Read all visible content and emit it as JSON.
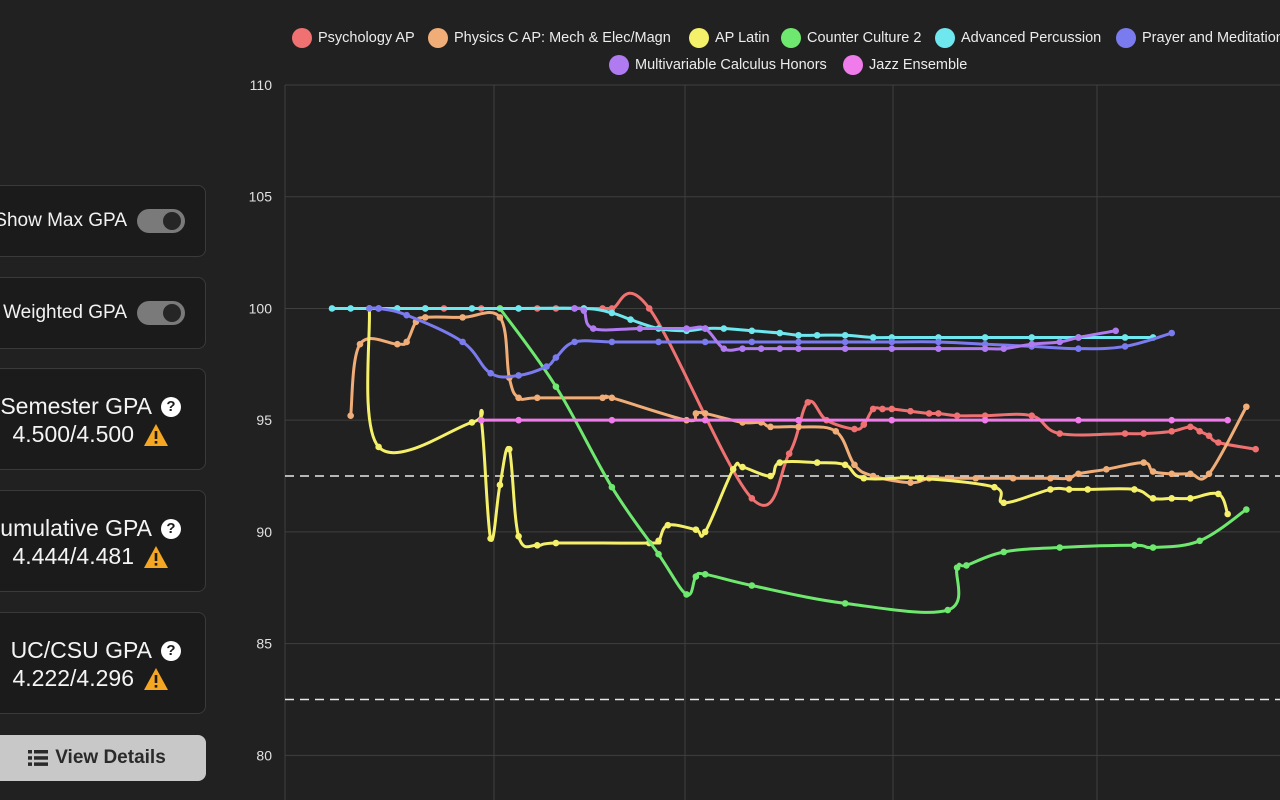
{
  "sidebar": {
    "toggles": [
      {
        "label": "Show Max GPA",
        "on": true
      },
      {
        "label": "Weighted GPA",
        "on": true
      }
    ],
    "gpa_cards": [
      {
        "title": "Semester GPA",
        "value": "4.500/4.500"
      },
      {
        "title": "Cumulative GPA",
        "value": "4.444/4.481"
      },
      {
        "title": "UC/CSU GPA",
        "value": "4.222/4.296"
      }
    ],
    "details_label": "View Details"
  },
  "colors": {
    "warning": "#f5a623",
    "grid": "#3f3f3f",
    "dashed": "#e8e8e8"
  },
  "chart_data": {
    "type": "line",
    "ylim": [
      78,
      110
    ],
    "yticks": [
      80,
      85,
      90,
      95,
      100,
      105,
      110
    ],
    "reference_lines": [
      92.5,
      82.5
    ],
    "x_range": [
      0,
      100
    ],
    "series": [
      {
        "name": "Psychology AP",
        "color": "#f07171",
        "x": [
          7,
          10,
          12,
          16,
          18,
          20,
          22,
          24,
          26,
          27,
          29,
          30,
          34,
          45,
          49,
          51,
          53,
          56,
          57,
          58,
          59,
          60,
          62,
          64,
          65,
          67,
          70,
          75,
          78,
          85,
          87,
          90,
          92,
          93,
          94,
          95,
          99
        ],
        "values": [
          100,
          100,
          100,
          100,
          100,
          100,
          100,
          100,
          100,
          100,
          100,
          100,
          100,
          91.5,
          93.5,
          95.8,
          95,
          94.6,
          94.8,
          95.5,
          95.5,
          95.5,
          95.4,
          95.3,
          95.3,
          95.2,
          95.2,
          95.2,
          94.4,
          94.4,
          94.4,
          94.5,
          94.7,
          94.5,
          94.3,
          94.0,
          93.7
        ]
      },
      {
        "name": "Physics C AP: Mech & Elec/Magn",
        "color": "#f0ad78",
        "x": [
          2,
          3,
          7,
          8,
          9,
          10,
          14,
          18,
          19,
          20,
          22,
          29,
          30,
          38,
          39,
          40,
          44,
          46,
          47,
          50,
          54,
          56,
          58,
          62,
          64,
          66,
          69,
          73,
          77,
          79,
          80,
          83,
          87,
          88,
          90,
          92,
          94,
          98
        ],
        "values": [
          95.2,
          98.4,
          98.4,
          98.5,
          99.4,
          99.6,
          99.6,
          99.6,
          96.9,
          96.0,
          96.0,
          96.0,
          96.0,
          95.0,
          95.3,
          95.3,
          94.9,
          94.9,
          94.7,
          94.7,
          94.5,
          93.0,
          92.5,
          92.2,
          92.4,
          92.4,
          92.4,
          92.4,
          92.4,
          92.4,
          92.6,
          92.8,
          93.1,
          92.7,
          92.6,
          92.6,
          92.6,
          95.6
        ]
      },
      {
        "name": "AP Latin",
        "color": "#f5f06a",
        "x": [
          4,
          5,
          15,
          16,
          17,
          18,
          19,
          20,
          22,
          24,
          34,
          35,
          36,
          39,
          40,
          43,
          44,
          47,
          48,
          52,
          55,
          57,
          63,
          71,
          72,
          77,
          79,
          81,
          86,
          88,
          90,
          92,
          95,
          96
        ],
        "values": [
          100,
          93.8,
          94.9,
          95.0,
          89.7,
          92.1,
          93.7,
          89.8,
          89.4,
          89.5,
          89.5,
          89.6,
          90.3,
          90.1,
          90.0,
          92.8,
          92.9,
          92.5,
          93.1,
          93.1,
          93.0,
          92.4,
          92.4,
          92.0,
          91.3,
          91.9,
          91.9,
          91.9,
          91.9,
          91.5,
          91.5,
          91.5,
          91.7,
          90.8
        ]
      },
      {
        "name": "Counter Culture 2",
        "color": "#6ee86e",
        "x": [
          18,
          24,
          30,
          35,
          38,
          39,
          40,
          45,
          55,
          66,
          67,
          68,
          72,
          78,
          86,
          88,
          93,
          98
        ],
        "values": [
          100,
          96.5,
          92.0,
          89.0,
          87.2,
          88.0,
          88.1,
          87.6,
          86.8,
          86.5,
          88.4,
          88.5,
          89.1,
          89.3,
          89.4,
          89.3,
          89.6,
          91.0
        ]
      },
      {
        "name": "Advanced Percussion",
        "color": "#6ee8ee",
        "x": [
          0,
          2,
          5,
          7,
          10,
          15,
          20,
          27,
          30,
          32,
          35,
          38,
          40,
          42,
          45,
          48,
          50,
          52,
          55,
          58,
          60,
          65,
          70,
          75,
          80,
          85,
          88
        ],
        "values": [
          100,
          100,
          100,
          100,
          100,
          100,
          100,
          100,
          99.8,
          99.5,
          99.1,
          99.0,
          99.1,
          99.1,
          99.0,
          98.9,
          98.8,
          98.8,
          98.8,
          98.7,
          98.7,
          98.7,
          98.7,
          98.7,
          98.7,
          98.7,
          98.7
        ]
      },
      {
        "name": "Prayer and Meditation",
        "color": "#7b7bf0",
        "x": [
          4,
          5,
          8,
          14,
          17,
          20,
          23,
          24,
          26,
          30,
          35,
          40,
          45,
          50,
          55,
          60,
          65,
          70,
          75,
          80,
          85,
          90
        ],
        "values": [
          100,
          100,
          99.7,
          98.5,
          97.1,
          97.0,
          97.4,
          97.8,
          98.5,
          98.5,
          98.5,
          98.5,
          98.5,
          98.5,
          98.5,
          98.5,
          98.5,
          98.4,
          98.3,
          98.2,
          98.3,
          98.9
        ]
      },
      {
        "name": "Multivariable Calculus Honors",
        "color": "#b07bf0",
        "x": [
          26,
          27,
          28,
          33,
          38,
          40,
          42,
          44,
          46,
          48,
          50,
          55,
          60,
          65,
          70,
          72,
          75,
          78,
          80,
          84
        ],
        "values": [
          100,
          99.9,
          99.1,
          99.1,
          99.1,
          99.1,
          98.2,
          98.2,
          98.2,
          98.2,
          98.2,
          98.2,
          98.2,
          98.2,
          98.2,
          98.2,
          98.4,
          98.5,
          98.7,
          99.0
        ]
      },
      {
        "name": "Jazz Ensemble",
        "color": "#f07bea",
        "x": [
          16,
          20,
          30,
          40,
          50,
          60,
          70,
          80,
          90,
          96
        ],
        "values": [
          95,
          95,
          95,
          95,
          95,
          95,
          95,
          95,
          95,
          95
        ]
      }
    ]
  }
}
